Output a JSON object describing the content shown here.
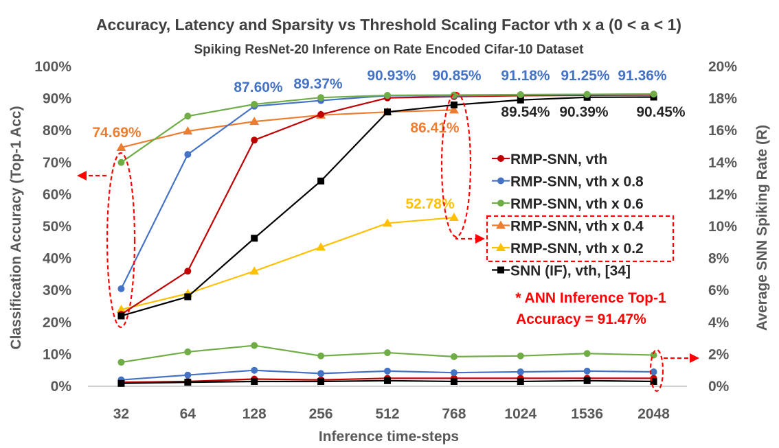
{
  "chart_data": {
    "type": "line",
    "title": "Accuracy, Latency and Sparsity vs Threshold Scaling Factor vth x a (0 < a < 1)",
    "subtitle": "Spiking ResNet-20 Inference on Rate Encoded Cifar-10 Dataset",
    "xlabel": "Inference time-steps",
    "ylabel_left": "Classification Accuracy (Top-1 Acc)",
    "ylabel_right": "Average SNN Spiking Rate (R)",
    "categories": [
      "32",
      "64",
      "128",
      "256",
      "512",
      "768",
      "1024",
      "1536",
      "2048"
    ],
    "ylim_left": [
      0,
      100
    ],
    "ylim_right": [
      0,
      20
    ],
    "yticks_left": [
      "0%",
      "10%",
      "20%",
      "30%",
      "40%",
      "50%",
      "60%",
      "70%",
      "80%",
      "90%",
      "100%"
    ],
    "yticks_right": [
      "0%",
      "2%",
      "4%",
      "6%",
      "8%",
      "10%",
      "12%",
      "14%",
      "16%",
      "18%",
      "20%"
    ],
    "grid": false,
    "legend_position": "right",
    "accuracy_series": [
      {
        "name": "RMP-SNN, vth",
        "color": "#C00000",
        "marker": "circle",
        "values": [
          22.5,
          36.0,
          77.0,
          85.0,
          90.2,
          90.6,
          90.9,
          91.0,
          91.1
        ]
      },
      {
        "name": "RMP-SNN, vth x 0.8",
        "color": "#4472C4",
        "marker": "circle",
        "values": [
          30.5,
          72.5,
          87.6,
          89.37,
          90.93,
          90.85,
          91.18,
          91.25,
          91.36
        ]
      },
      {
        "name": "RMP-SNN, vth x 0.6",
        "color": "#70AD47",
        "marker": "circle",
        "values": [
          70.0,
          84.5,
          88.2,
          90.3,
          91.0,
          91.1,
          91.2,
          91.3,
          91.4
        ]
      },
      {
        "name": "RMP-SNN, vth x 0.4",
        "color": "#ED7D31",
        "marker": "triangle",
        "values": [
          74.69,
          79.8,
          82.8,
          84.8,
          85.8,
          86.41,
          null,
          null,
          null
        ]
      },
      {
        "name": "RMP-SNN, vth x 0.2",
        "color": "#FFC000",
        "marker": "triangle",
        "values": [
          24.0,
          29.0,
          36.0,
          43.5,
          51.0,
          52.78,
          null,
          null,
          null
        ]
      },
      {
        "name": "SNN (IF), vth, [34]",
        "color": "#000000",
        "marker": "square",
        "values": [
          22.0,
          28.0,
          46.3,
          64.2,
          85.8,
          88.0,
          89.54,
          90.39,
          90.45
        ]
      }
    ],
    "spiking_rate_series": [
      {
        "name": "RMP-SNN, vth",
        "color": "#C00000",
        "marker": "circle",
        "values": [
          0.25,
          0.3,
          0.45,
          0.4,
          0.5,
          0.5,
          0.5,
          0.5,
          0.5
        ]
      },
      {
        "name": "RMP-SNN, vth x 0.8",
        "color": "#4472C4",
        "marker": "circle",
        "values": [
          0.4,
          0.7,
          1.0,
          0.8,
          0.95,
          0.85,
          0.9,
          0.95,
          0.9
        ]
      },
      {
        "name": "RMP-SNN, vth x 0.6",
        "color": "#70AD47",
        "marker": "circle",
        "values": [
          1.5,
          2.15,
          2.55,
          1.9,
          2.1,
          1.85,
          1.9,
          2.05,
          1.95
        ]
      },
      {
        "name": "SNN (IF), vth, [34]",
        "color": "#000000",
        "marker": "square",
        "values": [
          0.18,
          0.25,
          0.3,
          0.3,
          0.35,
          0.3,
          0.3,
          0.35,
          0.3
        ]
      }
    ],
    "data_labels": [
      {
        "text": "74.69%",
        "color": "#ED7D31"
      },
      {
        "text": "87.60%",
        "color": "#4472C4"
      },
      {
        "text": "89.37%",
        "color": "#4472C4"
      },
      {
        "text": "90.93%",
        "color": "#4472C4"
      },
      {
        "text": "90.85%",
        "color": "#4472C4"
      },
      {
        "text": "91.18%",
        "color": "#4472C4"
      },
      {
        "text": "91.25%",
        "color": "#4472C4"
      },
      {
        "text": "91.36%",
        "color": "#4472C4"
      },
      {
        "text": "86.41%",
        "color": "#ED7D31"
      },
      {
        "text": "52.78%",
        "color": "#FFC000"
      },
      {
        "text": "89.54%",
        "color": "#262626"
      },
      {
        "text": "90.39%",
        "color": "#262626"
      },
      {
        "text": "90.45%",
        "color": "#262626"
      }
    ],
    "ann_note": {
      "line1": "* ANN Inference Top-1",
      "line2": "Accuracy = 91.47%",
      "color": "#FF0000"
    },
    "highlight_color": "#FF0000"
  }
}
